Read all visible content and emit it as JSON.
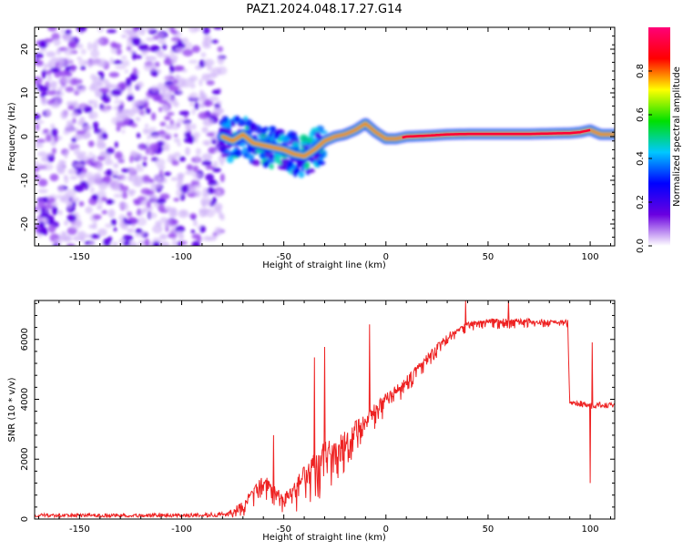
{
  "chart_data": {
    "title": "PAZ1.2024.048.17.27.G14",
    "panels": [
      {
        "type": "heatmap",
        "xlabel": "Height of straight line (km)",
        "ylabel": "Frequency (Hz)",
        "xlim": [
          -172,
          112
        ],
        "ylim": [
          -25,
          25
        ],
        "xticks": [
          -150,
          -100,
          -50,
          0,
          50,
          100
        ],
        "yticks": [
          -20,
          -10,
          0,
          10,
          20
        ],
        "colorbar": {
          "label": "Normalized spectral amplitude",
          "range": [
            0,
            1
          ],
          "ticks": [
            "0.0",
            "0.2",
            "0.4",
            "0.6",
            "0.8"
          ],
          "colormap": [
            "#ffffff",
            "#6a00e0",
            "#0000ff",
            "#00c8ff",
            "#00e000",
            "#ffff00",
            "#ff0000",
            "#ff0078"
          ]
        },
        "ridge": {
          "description_free": true,
          "points": [
            [
              -80,
              0
            ],
            [
              -75,
              -1.0
            ],
            [
              -70,
              0.5
            ],
            [
              -65,
              -1.5
            ],
            [
              -60,
              -2.0
            ],
            [
              -55,
              -2.5
            ],
            [
              -50,
              -3.0
            ],
            [
              -45,
              -4.0
            ],
            [
              -40,
              -4.5
            ],
            [
              -35,
              -3.0
            ],
            [
              -30,
              -1.0
            ],
            [
              -25,
              0.0
            ],
            [
              -20,
              0.5
            ],
            [
              -15,
              1.5
            ],
            [
              -10,
              3.0
            ],
            [
              -5,
              1.0
            ],
            [
              0,
              -0.5
            ],
            [
              5,
              -0.5
            ],
            [
              10,
              0.0
            ],
            [
              20,
              0.2
            ],
            [
              30,
              0.5
            ],
            [
              40,
              0.6
            ],
            [
              50,
              0.6
            ],
            [
              60,
              0.6
            ],
            [
              70,
              0.6
            ],
            [
              80,
              0.7
            ],
            [
              90,
              0.8
            ],
            [
              95,
              1.0
            ],
            [
              100,
              1.5
            ],
            [
              105,
              0.5
            ],
            [
              112,
              0.5
            ]
          ]
        }
      },
      {
        "type": "line",
        "xlabel": "Height of straight line (km)",
        "ylabel": "SNR (10 * v/v)",
        "xlim": [
          -172,
          112
        ],
        "ylim": [
          0,
          7300
        ],
        "xticks": [
          -150,
          -100,
          -50,
          0,
          50,
          100
        ],
        "yticks": [
          0,
          2000,
          4000,
          6000
        ],
        "color": "#ee2222",
        "envelope": [
          [
            -172,
            120
          ],
          [
            -100,
            120
          ],
          [
            -80,
            150
          ],
          [
            -70,
            600
          ],
          [
            -60,
            1500
          ],
          [
            -50,
            800
          ],
          [
            -40,
            1800
          ],
          [
            -30,
            2600
          ],
          [
            -20,
            3000
          ],
          [
            -10,
            3600
          ],
          [
            0,
            4200
          ],
          [
            10,
            4800
          ],
          [
            20,
            5500
          ],
          [
            30,
            6200
          ],
          [
            40,
            6600
          ],
          [
            50,
            6700
          ],
          [
            60,
            6700
          ],
          [
            70,
            6700
          ],
          [
            80,
            6650
          ],
          [
            89,
            6650
          ],
          [
            90,
            3900
          ],
          [
            95,
            3850
          ],
          [
            100,
            3800
          ],
          [
            105,
            3800
          ],
          [
            112,
            3800
          ]
        ],
        "noise": [
          [
            -172,
            60
          ],
          [
            -100,
            60
          ],
          [
            -80,
            80
          ],
          [
            -70,
            600
          ],
          [
            -60,
            800
          ],
          [
            -50,
            700
          ],
          [
            -40,
            1500
          ],
          [
            -30,
            1800
          ],
          [
            -20,
            1500
          ],
          [
            -10,
            900
          ],
          [
            0,
            800
          ],
          [
            10,
            600
          ],
          [
            20,
            500
          ],
          [
            30,
            400
          ],
          [
            40,
            350
          ],
          [
            50,
            350
          ],
          [
            60,
            350
          ],
          [
            70,
            300
          ],
          [
            80,
            250
          ],
          [
            89,
            250
          ],
          [
            90,
            80
          ],
          [
            100,
            120
          ],
          [
            112,
            80
          ]
        ],
        "spikes": [
          [
            -55,
            2800
          ],
          [
            -35,
            5400
          ],
          [
            -30,
            5750
          ],
          [
            -8,
            6500
          ],
          [
            39,
            7300
          ],
          [
            60,
            7300
          ],
          [
            101,
            5900
          ],
          [
            100,
            1200
          ]
        ]
      }
    ]
  }
}
